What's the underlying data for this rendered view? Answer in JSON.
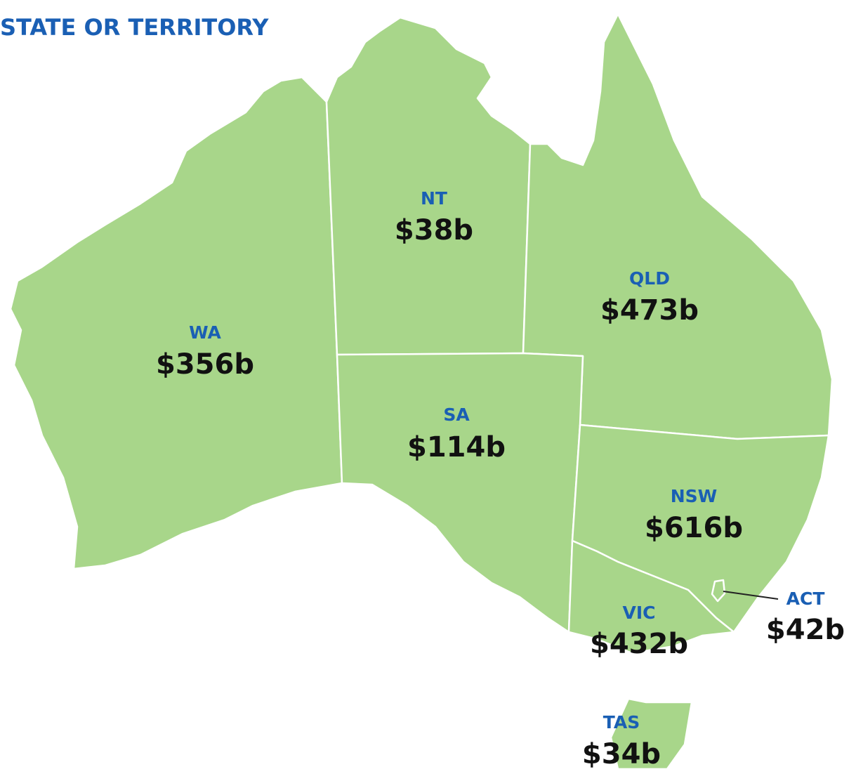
{
  "title": "STATE OR TERRITORY",
  "regions": [
    {
      "name": "WA",
      "value": "$356b"
    },
    {
      "name": "NT",
      "value": "$38b"
    },
    {
      "name": "QLD",
      "value": "$473b"
    },
    {
      "name": "SA",
      "value": "$114b"
    },
    {
      "name": "NSW",
      "value": "$616b"
    },
    {
      "name": "VIC",
      "value": "$432b"
    },
    {
      "name": "ACT",
      "value": "$42b"
    },
    {
      "name": "TAS",
      "value": "$34b"
    }
  ]
}
